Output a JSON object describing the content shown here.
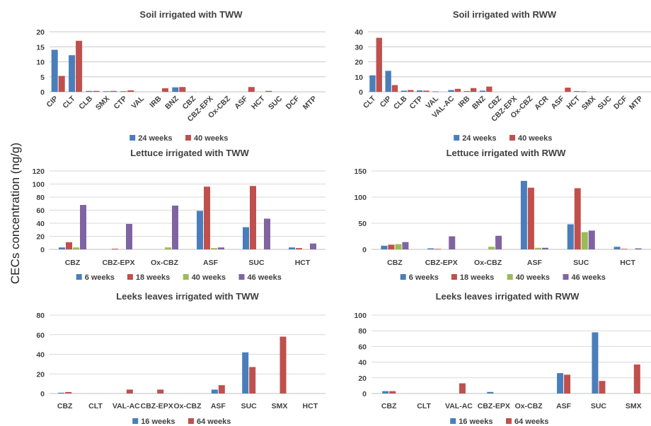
{
  "figure": {
    "ylabel": "CECs concentration (ng/g)",
    "colors": {
      "blue": "#4a7ebb",
      "red": "#c0504d",
      "green": "#9bbb59",
      "purple": "#8064a2"
    }
  },
  "chart_data": [
    {
      "type": "bar",
      "title": "Soil irrigated with TWW",
      "ylim": [
        0,
        20
      ],
      "yticks": [
        0,
        5,
        10,
        15,
        20
      ],
      "legend": "bottom",
      "categories": [
        "CIP",
        "CLT",
        "CLB",
        "SMX",
        "CTP",
        "VAL",
        "IRB",
        "BNZ",
        "CBZ",
        "CBZ-EPX",
        "Ox-CBZ",
        "ASF",
        "HCT",
        "SUC",
        "DCF",
        "MTP"
      ],
      "series": [
        {
          "name": "24 weeks",
          "color": "#4a7ebb",
          "values": [
            14,
            12.2,
            0.3,
            0.2,
            0.2,
            0,
            0,
            1.5,
            0,
            0,
            0,
            0,
            0,
            0,
            0,
            0
          ]
        },
        {
          "name": "40 weeks",
          "color": "#c0504d",
          "values": [
            5.3,
            17,
            0.3,
            0.3,
            0.5,
            0,
            1.2,
            1.6,
            0,
            0,
            0,
            1.6,
            0.3,
            0,
            0,
            0
          ]
        }
      ]
    },
    {
      "type": "bar",
      "title": "Soil irrigated with RWW",
      "ylim": [
        0,
        40
      ],
      "yticks": [
        0,
        10,
        20,
        30,
        40
      ],
      "legend": "bottom",
      "categories": [
        "CLT",
        "CIP",
        "CLB",
        "CTP",
        "VAL",
        "VAL-AC",
        "IRB",
        "BNZ",
        "CBZ",
        "CBZ-EPX",
        "Ox-CBZ",
        "ACR",
        "ASF",
        "HCT",
        "SMX",
        "SUC",
        "DCF",
        "MTP"
      ],
      "series": [
        {
          "name": "24 weeks",
          "color": "#4a7ebb",
          "values": [
            11,
            14,
            0.8,
            1,
            0.3,
            1.2,
            0.5,
            0.8,
            0,
            0,
            0,
            0,
            0,
            0.5,
            0,
            0,
            0,
            0
          ]
        },
        {
          "name": "40 weeks",
          "color": "#c0504d",
          "values": [
            36,
            4.5,
            1.2,
            0.8,
            0,
            2,
            2.5,
            3.5,
            0,
            0,
            0,
            0,
            2.8,
            0.3,
            0,
            0,
            0,
            0
          ]
        }
      ]
    },
    {
      "type": "bar",
      "title": "Lettuce irrigated with TWW",
      "ylim": [
        0,
        120
      ],
      "yticks": [
        0,
        20,
        40,
        60,
        80,
        100,
        120
      ],
      "legend": "bottom",
      "categories": [
        "CBZ",
        "CBZ-EPX",
        "Ox-CBZ",
        "ASF",
        "SUC",
        "HCT"
      ],
      "series": [
        {
          "name": "6 weeks",
          "color": "#4a7ebb",
          "values": [
            3,
            0,
            0,
            59,
            34,
            3
          ]
        },
        {
          "name": "18 weeks",
          "color": "#c0504d",
          "values": [
            11,
            1,
            0,
            96,
            97,
            2
          ]
        },
        {
          "name": "40 weeks",
          "color": "#9bbb59",
          "values": [
            3,
            0,
            3,
            2,
            0,
            0
          ]
        },
        {
          "name": "46 weeks",
          "color": "#8064a2",
          "values": [
            68,
            39,
            67,
            3,
            47,
            9
          ]
        }
      ]
    },
    {
      "type": "bar",
      "title": "Lettuce irrigated with RWW",
      "ylim": [
        0,
        150
      ],
      "yticks": [
        0,
        50,
        100,
        150
      ],
      "legend": "bottom",
      "categories": [
        "CBZ",
        "CBZ-EPX",
        "Ox-CBZ",
        "ASF",
        "SUC",
        "HCT"
      ],
      "series": [
        {
          "name": "6 weeks",
          "color": "#4a7ebb",
          "values": [
            7,
            2,
            0,
            131,
            48,
            5
          ]
        },
        {
          "name": "18 weeks",
          "color": "#c0504d",
          "values": [
            9,
            1,
            0,
            118,
            117,
            1
          ]
        },
        {
          "name": "40 weeks",
          "color": "#9bbb59",
          "values": [
            10,
            0,
            5,
            3,
            33,
            0
          ]
        },
        {
          "name": "46 weeks",
          "color": "#8064a2",
          "values": [
            14,
            25,
            26,
            3,
            36,
            2
          ]
        }
      ]
    },
    {
      "type": "bar",
      "title": "Leeks leaves irrigated with TWW",
      "ylim": [
        0,
        80
      ],
      "yticks": [
        0,
        20,
        40,
        60,
        80
      ],
      "legend": "bottom",
      "categories": [
        "CBZ",
        "CLT",
        "VAL-AC",
        "CBZ-EPX",
        "Ox-CBZ",
        "ASF",
        "SUC",
        "SMX",
        "HCT"
      ],
      "series": [
        {
          "name": "16 weeks",
          "color": "#4a7ebb",
          "values": [
            0.8,
            0,
            0,
            0,
            0,
            4,
            42,
            0,
            0
          ]
        },
        {
          "name": "64 weeks",
          "color": "#c0504d",
          "values": [
            1.5,
            0,
            4,
            4,
            0,
            8.5,
            27,
            58,
            0
          ]
        }
      ]
    },
    {
      "type": "bar",
      "title": "Leeks leaves irrigated with RWW",
      "ylim": [
        0,
        100
      ],
      "yticks": [
        0,
        20,
        40,
        60,
        80,
        100
      ],
      "legend": "bottom",
      "categories": [
        "CBZ",
        "CLT",
        "VAL-AC",
        "CBZ-EPX",
        "Ox-CBZ",
        "ASF",
        "SUC",
        "SMX"
      ],
      "series": [
        {
          "name": "16 weeks",
          "color": "#4a7ebb",
          "values": [
            3,
            0,
            0,
            2,
            0,
            26,
            78,
            0
          ]
        },
        {
          "name": "64 weeks",
          "color": "#c0504d",
          "values": [
            3,
            0,
            13,
            0,
            0,
            24,
            16,
            37
          ]
        }
      ]
    }
  ]
}
